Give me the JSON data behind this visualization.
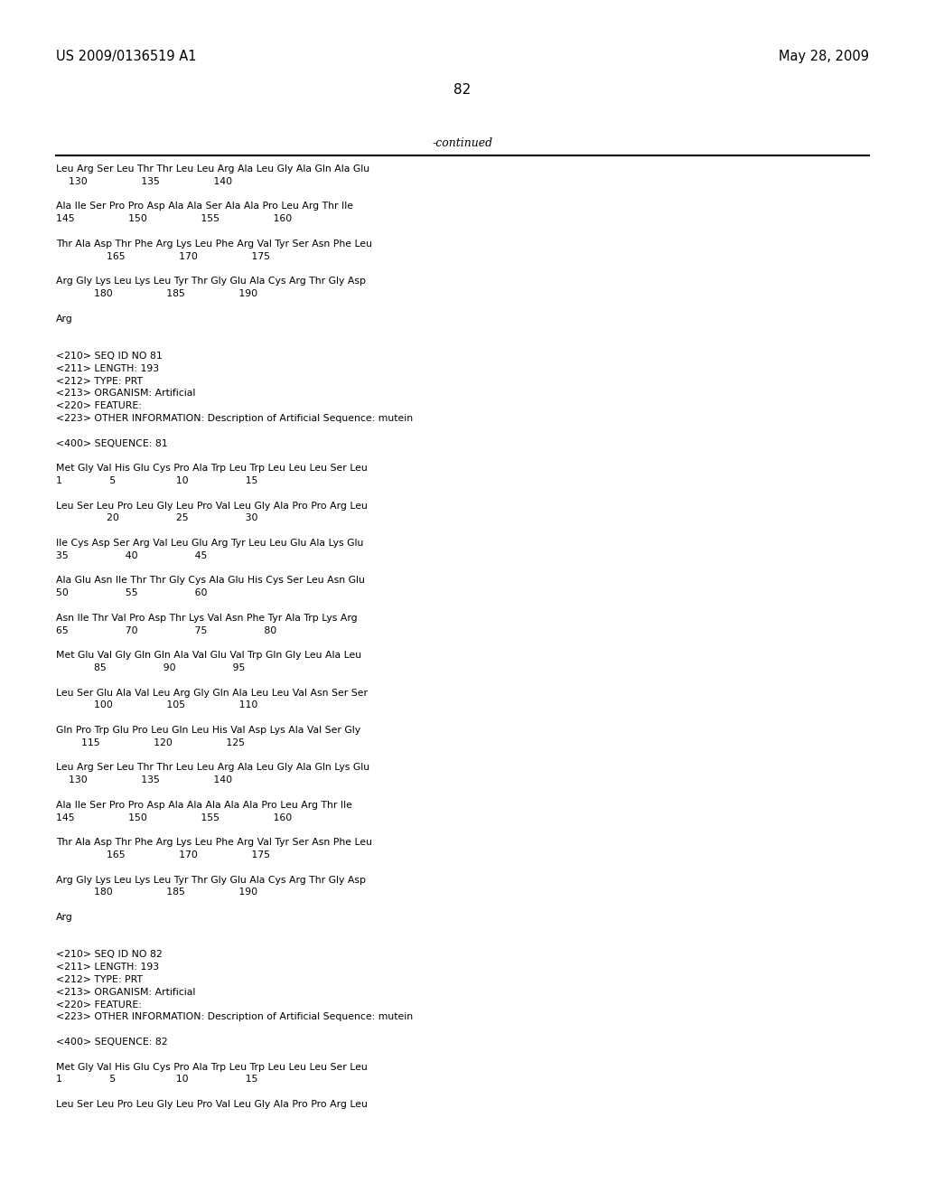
{
  "header_left": "US 2009/0136519 A1",
  "header_right": "May 28, 2009",
  "page_number": "82",
  "continued_label": "-continued",
  "background_color": "#ffffff",
  "text_color": "#000000",
  "lines": [
    "Leu Arg Ser Leu Thr Thr Leu Leu Arg Ala Leu Gly Ala Gln Ala Glu",
    "    130                 135                 140",
    "",
    "Ala Ile Ser Pro Pro Asp Ala Ala Ser Ala Ala Pro Leu Arg Thr Ile",
    "145                 150                 155                 160",
    "",
    "Thr Ala Asp Thr Phe Arg Lys Leu Phe Arg Val Tyr Ser Asn Phe Leu",
    "                165                 170                 175",
    "",
    "Arg Gly Lys Leu Lys Leu Tyr Thr Gly Glu Ala Cys Arg Thr Gly Asp",
    "            180                 185                 190",
    "",
    "Arg",
    "",
    "",
    "<210> SEQ ID NO 81",
    "<211> LENGTH: 193",
    "<212> TYPE: PRT",
    "<213> ORGANISM: Artificial",
    "<220> FEATURE:",
    "<223> OTHER INFORMATION: Description of Artificial Sequence: mutein",
    "",
    "<400> SEQUENCE: 81",
    "",
    "Met Gly Val His Glu Cys Pro Ala Trp Leu Trp Leu Leu Leu Ser Leu",
    "1               5                   10                  15",
    "",
    "Leu Ser Leu Pro Leu Gly Leu Pro Val Leu Gly Ala Pro Pro Arg Leu",
    "                20                  25                  30",
    "",
    "Ile Cys Asp Ser Arg Val Leu Glu Arg Tyr Leu Leu Glu Ala Lys Glu",
    "35                  40                  45",
    "",
    "Ala Glu Asn Ile Thr Thr Gly Cys Ala Glu His Cys Ser Leu Asn Glu",
    "50                  55                  60",
    "",
    "Asn Ile Thr Val Pro Asp Thr Lys Val Asn Phe Tyr Ala Trp Lys Arg",
    "65                  70                  75                  80",
    "",
    "Met Glu Val Gly Gln Gln Ala Val Glu Val Trp Gln Gly Leu Ala Leu",
    "            85                  90                  95",
    "",
    "Leu Ser Glu Ala Val Leu Arg Gly Gln Ala Leu Leu Val Asn Ser Ser",
    "            100                 105                 110",
    "",
    "Gln Pro Trp Glu Pro Leu Gln Leu His Val Asp Lys Ala Val Ser Gly",
    "        115                 120                 125",
    "",
    "Leu Arg Ser Leu Thr Thr Leu Leu Arg Ala Leu Gly Ala Gln Lys Glu",
    "    130                 135                 140",
    "",
    "Ala Ile Ser Pro Pro Asp Ala Ala Ala Ala Ala Pro Leu Arg Thr Ile",
    "145                 150                 155                 160",
    "",
    "Thr Ala Asp Thr Phe Arg Lys Leu Phe Arg Val Tyr Ser Asn Phe Leu",
    "                165                 170                 175",
    "",
    "Arg Gly Lys Leu Lys Leu Tyr Thr Gly Glu Ala Cys Arg Thr Gly Asp",
    "            180                 185                 190",
    "",
    "Arg",
    "",
    "",
    "<210> SEQ ID NO 82",
    "<211> LENGTH: 193",
    "<212> TYPE: PRT",
    "<213> ORGANISM: Artificial",
    "<220> FEATURE:",
    "<223> OTHER INFORMATION: Description of Artificial Sequence: mutein",
    "",
    "<400> SEQUENCE: 82",
    "",
    "Met Gly Val His Glu Cys Pro Ala Trp Leu Trp Leu Leu Leu Ser Leu",
    "1               5                   10                  15",
    "",
    "Leu Ser Leu Pro Leu Gly Leu Pro Val Leu Gly Ala Pro Pro Arg Leu"
  ]
}
